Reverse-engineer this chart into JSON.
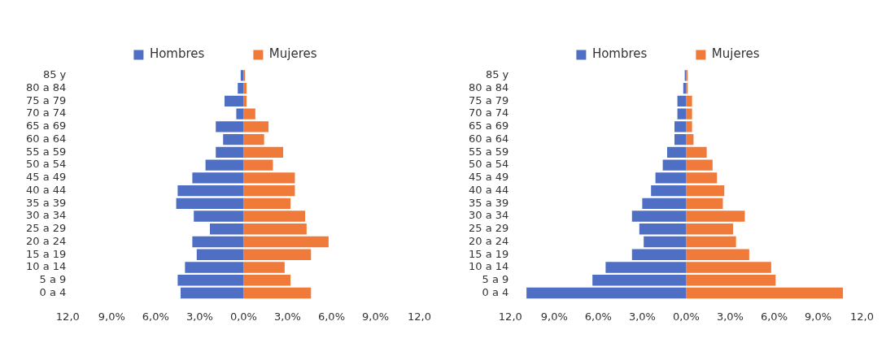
{
  "chart_data": [
    {
      "type": "bar",
      "orientation": "horizontal",
      "stacked": true,
      "legend": "top",
      "grid": false,
      "categories": [
        "85 y",
        "80 a 84",
        "75 a 79",
        "70 a 74",
        "65 a 69",
        "60 a 64",
        "55 a 59",
        "50 a 54",
        "45 a 49",
        "40 a 44",
        "35 a 39",
        "30 a 34",
        "25 a 29",
        "20 a 24",
        "15 a 19",
        "10 a 14",
        "5 a 9",
        "0 a 4"
      ],
      "series": [
        {
          "name": "Hombres",
          "color": "#4f6fc4",
          "values": [
            -0.2,
            -0.4,
            -1.3,
            -0.5,
            -1.9,
            -1.4,
            -1.9,
            -2.6,
            -3.5,
            -4.5,
            -4.6,
            -3.4,
            -2.3,
            -3.5,
            -3.2,
            -4.0,
            -4.5,
            -4.3
          ]
        },
        {
          "name": "Mujeres",
          "color": "#f07a3a",
          "values": [
            0.1,
            0.2,
            0.2,
            0.8,
            1.7,
            1.4,
            2.7,
            2.0,
            3.5,
            3.5,
            3.2,
            4.2,
            4.3,
            5.8,
            4.6,
            2.8,
            3.2,
            4.6
          ]
        }
      ],
      "xlim": [
        -12,
        12
      ],
      "xticks": [
        {
          "value": -12,
          "label": "12,0"
        },
        {
          "value": -9,
          "label": "9,0%"
        },
        {
          "value": -6,
          "label": "6,0%"
        },
        {
          "value": -3,
          "label": "3,0%"
        },
        {
          "value": 0,
          "label": "0,0%"
        },
        {
          "value": 3,
          "label": "3,0%"
        },
        {
          "value": 6,
          "label": "6,0%"
        },
        {
          "value": 9,
          "label": "9,0%"
        },
        {
          "value": 12,
          "label": "12,0"
        }
      ]
    },
    {
      "type": "bar",
      "orientation": "horizontal",
      "stacked": true,
      "legend": "top",
      "grid": false,
      "categories": [
        "85 y",
        "80 a 84",
        "75 a 79",
        "70 a 74",
        "65 a 69",
        "60 a 64",
        "55 a 59",
        "50 a 54",
        "45 a 49",
        "40 a 44",
        "35 a 39",
        "30 a 34",
        "25 a 29",
        "20 a 24",
        "15 a 19",
        "10 a 14",
        "5 a 9",
        "0 a 4"
      ],
      "series": [
        {
          "name": "Hombres",
          "color": "#4f6fc4",
          "values": [
            -0.1,
            -0.2,
            -0.6,
            -0.6,
            -0.8,
            -0.8,
            -1.3,
            -1.6,
            -2.1,
            -2.4,
            -3.0,
            -3.7,
            -3.2,
            -2.9,
            -3.7,
            -5.5,
            -6.4,
            -10.9
          ]
        },
        {
          "name": "Mujeres",
          "color": "#f07a3a",
          "values": [
            0.1,
            0.1,
            0.4,
            0.4,
            0.4,
            0.5,
            1.4,
            1.8,
            2.1,
            2.6,
            2.5,
            4.0,
            3.2,
            3.4,
            4.3,
            5.8,
            6.1,
            10.7
          ]
        }
      ],
      "xlim": [
        -12,
        12
      ],
      "xticks": [
        {
          "value": -12,
          "label": "12,0"
        },
        {
          "value": -9,
          "label": "9,0%"
        },
        {
          "value": -6,
          "label": "6,0%"
        },
        {
          "value": -3,
          "label": "3,0%"
        },
        {
          "value": 0,
          "label": "0,0%"
        },
        {
          "value": 3,
          "label": "3,0%"
        },
        {
          "value": 6,
          "label": "6,0%"
        },
        {
          "value": 9,
          "label": "9,0%"
        },
        {
          "value": 12,
          "label": "12,0"
        }
      ]
    }
  ]
}
